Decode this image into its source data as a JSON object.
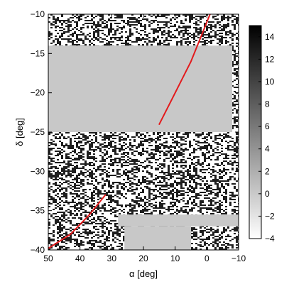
{
  "chart_data": {
    "type": "heatmap",
    "title": "",
    "xlabel": "α [deg]",
    "ylabel": "δ [deg]",
    "x_inverted": true,
    "xlim": [
      50,
      -10
    ],
    "ylim": [
      -40,
      -10
    ],
    "xticks": [
      50,
      40,
      30,
      20,
      10,
      0,
      -10
    ],
    "xtick_labels": [
      "50",
      "40",
      "30",
      "20",
      "10",
      "0",
      "−10"
    ],
    "yticks": [
      -10,
      -15,
      -20,
      -25,
      -30,
      -35,
      -40
    ],
    "ytick_labels": [
      "−10",
      "−15",
      "−20",
      "−25",
      "−30",
      "−35",
      "−40"
    ],
    "grid": false,
    "colormap": "gray_r",
    "colorbar": {
      "range": [
        -4,
        15
      ],
      "ticks": [
        14,
        12,
        10,
        8,
        6,
        4,
        2,
        0,
        -2,
        -4
      ],
      "tick_labels": [
        "14",
        "12",
        "10",
        "8",
        "6",
        "4",
        "2",
        "0",
        "−2",
        "−4"
      ]
    },
    "masked_regions_deg": [
      {
        "ra": [
          50,
          -8
        ],
        "dec": [
          -25,
          -14
        ]
      },
      {
        "ra": [
          28,
          -10
        ],
        "dec": [
          -37,
          -35.5
        ]
      },
      {
        "ra": [
          26,
          5
        ],
        "dec": [
          -40,
          -37
        ]
      }
    ],
    "series": [
      {
        "color": "#e31a1c",
        "points": [
          [
            15,
            -24
          ],
          [
            10,
            -20
          ],
          [
            5,
            -16
          ],
          [
            1,
            -12
          ],
          [
            -1,
            -10
          ]
        ]
      },
      {
        "color": "#e31a1c",
        "points": [
          [
            32,
            -33
          ],
          [
            37,
            -35.5
          ],
          [
            43,
            -38
          ],
          [
            50,
            -39.8
          ]
        ]
      }
    ]
  },
  "colors": {
    "masked": "#c8c8c8",
    "curve": "#e31a1c",
    "axis": "#000000",
    "background": "#ffffff"
  }
}
